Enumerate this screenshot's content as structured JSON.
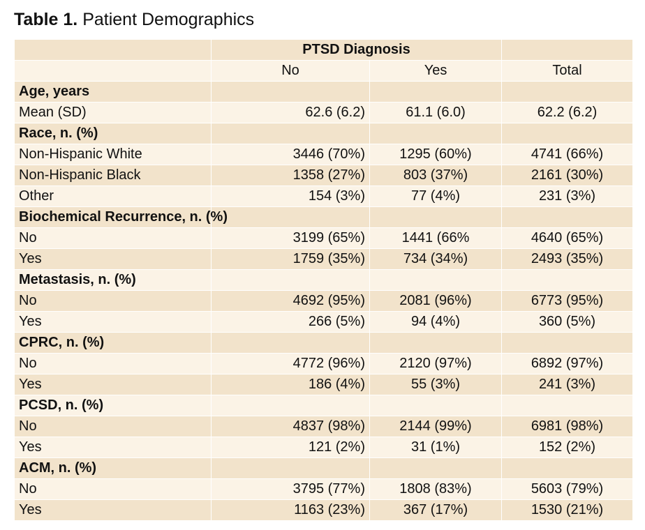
{
  "caption": {
    "label": "Table 1.",
    "title": "Patient Demographics"
  },
  "header": {
    "group_label": "PTSD Diagnosis",
    "columns": [
      "No",
      "Yes",
      "Total"
    ]
  },
  "sections": [
    {
      "title": "Age, years",
      "rows": [
        {
          "label": "Mean (SD)",
          "no": "62.6 (6.2)",
          "yes": "61.1 (6.0)",
          "total": "62.2 (6.2)"
        }
      ]
    },
    {
      "title": "Race, n. (%)",
      "rows": [
        {
          "label": "Non-Hispanic White",
          "no": "3446 (70%)",
          "yes": "1295 (60%)",
          "total": "4741 (66%)"
        },
        {
          "label": "Non-Hispanic Black",
          "no": "1358 (27%)",
          "yes": "803 (37%)",
          "total": "2161 (30%)"
        },
        {
          "label": "Other",
          "no": "154 (3%)",
          "yes": "77 (4%)",
          "total": "231 (3%)"
        }
      ]
    },
    {
      "title": "Biochemical Recurrence, n. (%)",
      "rows": [
        {
          "label": "No",
          "no": "3199 (65%)",
          "yes": "1441 (66%",
          "total": "4640 (65%)"
        },
        {
          "label": "Yes",
          "no": "1759 (35%)",
          "yes": "734 (34%)",
          "total": "2493 (35%)"
        }
      ]
    },
    {
      "title": "Metastasis, n. (%)",
      "rows": [
        {
          "label": "No",
          "no": "4692 (95%)",
          "yes": "2081 (96%)",
          "total": "6773 (95%)"
        },
        {
          "label": "Yes",
          "no": "266 (5%)",
          "yes": "94 (4%)",
          "total": "360 (5%)"
        }
      ]
    },
    {
      "title": "CPRC, n. (%)",
      "rows": [
        {
          "label": "No",
          "no": "4772 (96%)",
          "yes": "2120 (97%)",
          "total": "6892 (97%)"
        },
        {
          "label": "Yes",
          "no": "186 (4%)",
          "yes": "55 (3%)",
          "total": "241 (3%)"
        }
      ]
    },
    {
      "title": "PCSD, n. (%)",
      "rows": [
        {
          "label": "No",
          "no": "4837 (98%)",
          "yes": "2144 (99%)",
          "total": "6981 (98%)"
        },
        {
          "label": "Yes",
          "no": "121 (2%)",
          "yes": "31 (1%)",
          "total": "152 (2%)"
        }
      ]
    },
    {
      "title": "ACM, n. (%)",
      "rows": [
        {
          "label": "No",
          "no": "3795 (77%)",
          "yes": "1808 (83%)",
          "total": "5603 (79%)"
        },
        {
          "label": "Yes",
          "no": "1163 (23%)",
          "yes": "367 (17%)",
          "total": "1530 (21%)"
        }
      ]
    }
  ]
}
